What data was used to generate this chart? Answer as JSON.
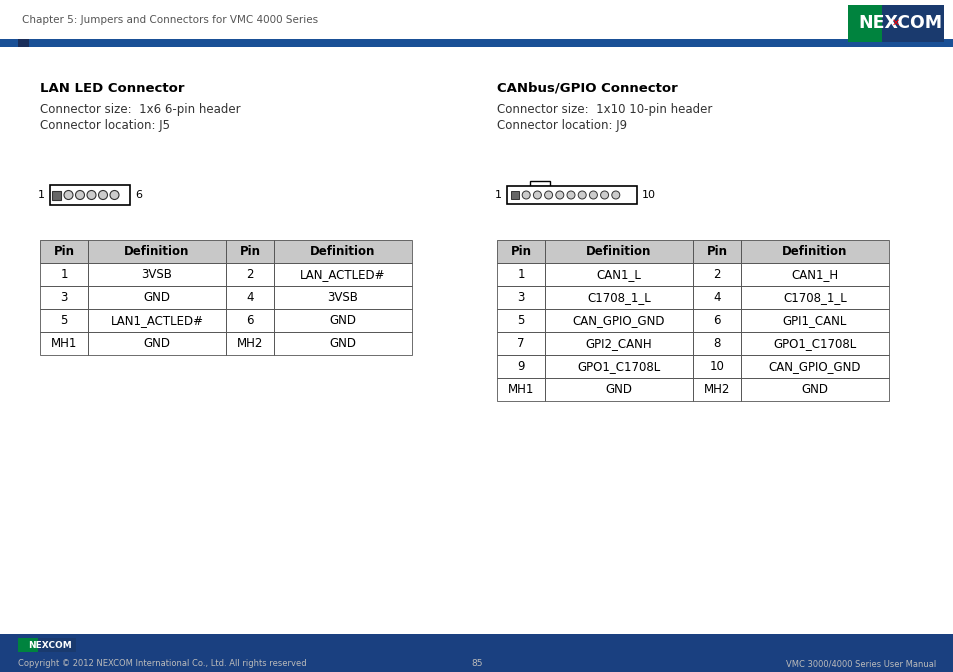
{
  "header_text": "Chapter 5: Jumpers and Connectors for VMC 4000 Series",
  "footer_copyright": "Copyright © 2012 NEXCOM International Co., Ltd. All rights reserved",
  "footer_page": "85",
  "footer_right": "VMC 3000/4000 Series User Manual",
  "nexcom_green": "#00833e",
  "nexcom_blue": "#1a3a6e",
  "header_blue": "#1a4080",
  "stripe_blue": "#1a5096",
  "stripe_dark": "#1a2e5a",
  "lan_title": "LAN LED Connector",
  "lan_size": "Connector size:  1x6 6-pin header",
  "lan_location": "Connector location: J5",
  "can_title": "CANbus/GPIO Connector",
  "can_size": "Connector size:  1x10 10-pin header",
  "can_location": "Connector location: J9",
  "lan_table_header": [
    "Pin",
    "Definition",
    "Pin",
    "Definition"
  ],
  "lan_table_data": [
    [
      "1",
      "3VSB",
      "2",
      "LAN_ACTLED#"
    ],
    [
      "3",
      "GND",
      "4",
      "3VSB"
    ],
    [
      "5",
      "LAN1_ACTLED#",
      "6",
      "GND"
    ],
    [
      "MH1",
      "GND",
      "MH2",
      "GND"
    ]
  ],
  "can_table_header": [
    "Pin",
    "Definition",
    "Pin",
    "Definition"
  ],
  "can_table_data": [
    [
      "1",
      "CAN1_L",
      "2",
      "CAN1_H"
    ],
    [
      "3",
      "C1708_1_L",
      "4",
      "C1708_1_L"
    ],
    [
      "5",
      "CAN_GPIO_GND",
      "6",
      "GPI1_CANL"
    ],
    [
      "7",
      "GPI2_CANH",
      "8",
      "GPO1_C1708L"
    ],
    [
      "9",
      "GPO1_C1708L",
      "10",
      "CAN_GPIO_GND"
    ],
    [
      "MH1",
      "GND",
      "MH2",
      "GND"
    ]
  ],
  "bg_color": "#ffffff",
  "table_header_bg": "#c8c8c8",
  "table_border": "#555555"
}
